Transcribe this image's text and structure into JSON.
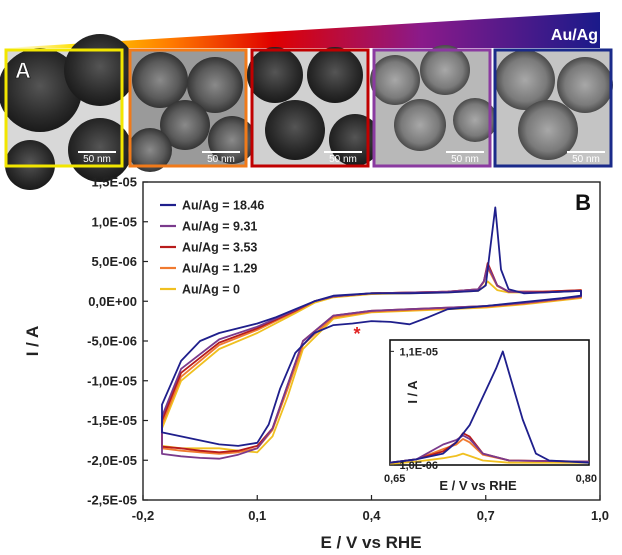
{
  "header": {
    "gradient_label": "Au/Ag",
    "panel_a_letter": "A",
    "panel_b_letter": "B",
    "gradient_colors": [
      "#ffffff",
      "#ffe000",
      "#ff7a00",
      "#e00000",
      "#8a1a8a",
      "#1a1a8a"
    ]
  },
  "tem_images": [
    {
      "scale": "50 nm",
      "border_color": "#f2e600"
    },
    {
      "scale": "50 nm",
      "border_color": "#f07a1a"
    },
    {
      "scale": "50 nm",
      "border_color": "#c00000"
    },
    {
      "scale": "50 nm",
      "border_color": "#8a3aa0"
    },
    {
      "scale": "50 nm",
      "border_color": "#1a2a8a"
    }
  ],
  "chart_data": [
    {
      "type": "line",
      "xlabel": "E / V vs RHE",
      "ylabel": "I / A",
      "xlim": [
        -0.2,
        1.0
      ],
      "ylim": [
        -2.5e-05,
        1.5e-05
      ],
      "x_ticks": [
        "-0,2",
        "0,1",
        "0,4",
        "0,7",
        "1,0"
      ],
      "y_ticks": [
        "1,5E-05",
        "1,0E-05",
        "5,0E-06",
        "0,0E+00",
        "-5,0E-06",
        "-1,0E-05",
        "-1,5E-05",
        "-2,0E-05",
        "-2,5E-05"
      ],
      "legend_position": "top-left",
      "annotation": "*",
      "series": [
        {
          "name": "Au/Ag = 18.46",
          "color": "#1f1f8c",
          "points": [
            [
              -0.15,
              -1.6e-05
            ],
            [
              -0.15,
              -1.65e-05
            ],
            [
              -0.1,
              -1.7e-05
            ],
            [
              -0.05,
              -1.75e-05
            ],
            [
              0.0,
              -1.8e-05
            ],
            [
              0.05,
              -1.82e-05
            ],
            [
              0.1,
              -1.78e-05
            ],
            [
              0.13,
              -1.55e-05
            ],
            [
              0.16,
              -1.1e-05
            ],
            [
              0.2,
              -6.5e-06
            ],
            [
              0.25,
              -4e-06
            ],
            [
              0.3,
              -3e-06
            ],
            [
              0.35,
              -2.8e-06
            ],
            [
              0.4,
              -2.5e-06
            ],
            [
              0.45,
              -2.6e-06
            ],
            [
              0.5,
              -2.9e-06
            ],
            [
              0.55,
              -2e-06
            ],
            [
              0.6,
              -1e-06
            ],
            [
              0.7,
              -6e-07
            ],
            [
              0.8,
              -1e-07
            ],
            [
              0.9,
              4e-07
            ],
            [
              0.95,
              7e-07
            ],
            [
              0.95,
              1.3e-06
            ],
            [
              0.9,
              1.2e-06
            ],
            [
              0.85,
              1.1e-06
            ],
            [
              0.8,
              1e-06
            ],
            [
              0.76,
              1.5e-06
            ],
            [
              0.74,
              4e-06
            ],
            [
              0.725,
              1.18e-05
            ],
            [
              0.71,
              6e-06
            ],
            [
              0.7,
              2e-06
            ],
            [
              0.68,
              1.3e-06
            ],
            [
              0.6,
              1.1e-06
            ],
            [
              0.5,
              1e-06
            ],
            [
              0.4,
              1e-06
            ],
            [
              0.3,
              7e-07
            ],
            [
              0.25,
              0.0
            ],
            [
              0.2,
              -1e-06
            ],
            [
              0.15,
              -2e-06
            ],
            [
              0.1,
              -2.8e-06
            ],
            [
              0.0,
              -4e-06
            ],
            [
              -0.05,
              -5e-06
            ],
            [
              -0.1,
              -7.5e-06
            ],
            [
              -0.15,
              -1.3e-05
            ],
            [
              -0.15,
              -1.6e-05
            ]
          ]
        },
        {
          "name": "Au/Ag = 9.31",
          "color": "#7a3a8c",
          "points": [
            [
              -0.15,
              -1.88e-05
            ],
            [
              -0.15,
              -1.92e-05
            ],
            [
              -0.1,
              -1.95e-05
            ],
            [
              -0.05,
              -1.97e-05
            ],
            [
              0.0,
              -1.98e-05
            ],
            [
              0.05,
              -1.93e-05
            ],
            [
              0.1,
              -1.85e-05
            ],
            [
              0.14,
              -1.6e-05
            ],
            [
              0.18,
              -1.05e-05
            ],
            [
              0.22,
              -5e-06
            ],
            [
              0.3,
              -1.8e-06
            ],
            [
              0.4,
              -1.2e-06
            ],
            [
              0.5,
              -1e-06
            ],
            [
              0.6,
              -8e-07
            ],
            [
              0.7,
              -6e-07
            ],
            [
              0.8,
              -2e-07
            ],
            [
              0.95,
              6e-07
            ],
            [
              0.95,
              1.3e-06
            ],
            [
              0.85,
              1.1e-06
            ],
            [
              0.76,
              1.2e-06
            ],
            [
              0.73,
              2e-06
            ],
            [
              0.705,
              4.5e-06
            ],
            [
              0.695,
              2.5e-06
            ],
            [
              0.68,
              1.5e-06
            ],
            [
              0.6,
              1.2e-06
            ],
            [
              0.5,
              1.1e-06
            ],
            [
              0.4,
              1e-06
            ],
            [
              0.3,
              6e-07
            ],
            [
              0.25,
              0.0
            ],
            [
              0.2,
              -1.1e-06
            ],
            [
              0.1,
              -3.2e-06
            ],
            [
              0.0,
              -4.8e-06
            ],
            [
              -0.1,
              -8.5e-06
            ],
            [
              -0.15,
              -1.45e-05
            ],
            [
              -0.15,
              -1.88e-05
            ]
          ]
        },
        {
          "name": "Au/Ag = 3.53",
          "color": "#b81c1c",
          "points": [
            [
              -0.15,
              -1.8e-05
            ],
            [
              -0.15,
              -1.83e-05
            ],
            [
              -0.1,
              -1.85e-05
            ],
            [
              -0.05,
              -1.88e-05
            ],
            [
              0.0,
              -1.9e-05
            ],
            [
              0.05,
              -1.88e-05
            ],
            [
              0.1,
              -1.82e-05
            ],
            [
              0.14,
              -1.6e-05
            ],
            [
              0.18,
              -1.05e-05
            ],
            [
              0.22,
              -5e-06
            ],
            [
              0.3,
              -1.8e-06
            ],
            [
              0.4,
              -1.2e-06
            ],
            [
              0.5,
              -1e-06
            ],
            [
              0.6,
              -8e-07
            ],
            [
              0.7,
              -6e-07
            ],
            [
              0.8,
              -2e-07
            ],
            [
              0.95,
              6e-07
            ],
            [
              0.95,
              1.4e-06
            ],
            [
              0.85,
              1.2e-06
            ],
            [
              0.76,
              1.2e-06
            ],
            [
              0.73,
              2e-06
            ],
            [
              0.705,
              4.8e-06
            ],
            [
              0.695,
              2.5e-06
            ],
            [
              0.68,
              1.5e-06
            ],
            [
              0.6,
              1.2e-06
            ],
            [
              0.5,
              1.1e-06
            ],
            [
              0.4,
              1e-06
            ],
            [
              0.3,
              6e-07
            ],
            [
              0.25,
              0.0
            ],
            [
              0.2,
              -1.2e-06
            ],
            [
              0.1,
              -3.4e-06
            ],
            [
              0.0,
              -5.2e-06
            ],
            [
              -0.1,
              -9e-06
            ],
            [
              -0.15,
              -1.5e-05
            ],
            [
              -0.15,
              -1.8e-05
            ]
          ]
        },
        {
          "name": "Au/Ag = 1.29",
          "color": "#f07a30",
          "points": [
            [
              -0.15,
              -1.8e-05
            ],
            [
              -0.15,
              -1.85e-05
            ],
            [
              -0.1,
              -1.88e-05
            ],
            [
              -0.05,
              -1.9e-05
            ],
            [
              0.0,
              -1.92e-05
            ],
            [
              0.05,
              -1.9e-05
            ],
            [
              0.1,
              -1.85e-05
            ],
            [
              0.14,
              -1.62e-05
            ],
            [
              0.18,
              -1.1e-05
            ],
            [
              0.22,
              -5.5e-06
            ],
            [
              0.3,
              -2e-06
            ],
            [
              0.4,
              -1.3e-06
            ],
            [
              0.5,
              -1.1e-06
            ],
            [
              0.6,
              -9e-07
            ],
            [
              0.7,
              -7e-07
            ],
            [
              0.8,
              -3e-07
            ],
            [
              0.95,
              5e-07
            ],
            [
              0.95,
              1.4e-06
            ],
            [
              0.85,
              1.2e-06
            ],
            [
              0.76,
              1.2e-06
            ],
            [
              0.73,
              1.9e-06
            ],
            [
              0.705,
              4.2e-06
            ],
            [
              0.695,
              2.4e-06
            ],
            [
              0.68,
              1.5e-06
            ],
            [
              0.6,
              1.2e-06
            ],
            [
              0.5,
              1.1e-06
            ],
            [
              0.4,
              1e-06
            ],
            [
              0.3,
              6e-07
            ],
            [
              0.25,
              0.0
            ],
            [
              0.2,
              -1.3e-06
            ],
            [
              0.1,
              -3.6e-06
            ],
            [
              0.0,
              -5.5e-06
            ],
            [
              -0.1,
              -9.5e-06
            ],
            [
              -0.15,
              -1.55e-05
            ],
            [
              -0.15,
              -1.8e-05
            ]
          ]
        },
        {
          "name": "Au/Ag = 0",
          "color": "#f0c020",
          "points": [
            [
              -0.15,
              -1.78e-05
            ],
            [
              -0.15,
              -1.82e-05
            ],
            [
              -0.1,
              -1.85e-05
            ],
            [
              -0.05,
              -1.85e-05
            ],
            [
              0.0,
              -1.85e-05
            ],
            [
              0.05,
              -1.88e-05
            ],
            [
              0.1,
              -1.9e-05
            ],
            [
              0.14,
              -1.7e-05
            ],
            [
              0.18,
              -1.2e-05
            ],
            [
              0.22,
              -6e-06
            ],
            [
              0.3,
              -2.2e-06
            ],
            [
              0.4,
              -1.4e-06
            ],
            [
              0.5,
              -1.2e-06
            ],
            [
              0.6,
              -1e-06
            ],
            [
              0.7,
              -8e-07
            ],
            [
              0.8,
              -4e-07
            ],
            [
              0.95,
              4e-07
            ],
            [
              0.95,
              1.3e-06
            ],
            [
              0.85,
              1.1e-06
            ],
            [
              0.76,
              1.1e-06
            ],
            [
              0.73,
              1.4e-06
            ],
            [
              0.705,
              2.5e-06
            ],
            [
              0.695,
              1.8e-06
            ],
            [
              0.68,
              1.3e-06
            ],
            [
              0.6,
              1.1e-06
            ],
            [
              0.5,
              1e-06
            ],
            [
              0.4,
              9e-07
            ],
            [
              0.3,
              5e-07
            ],
            [
              0.25,
              -2e-07
            ],
            [
              0.2,
              -1.5e-06
            ],
            [
              0.1,
              -4e-06
            ],
            [
              0.0,
              -6e-06
            ],
            [
              -0.1,
              -1e-05
            ],
            [
              -0.15,
              -1.6e-05
            ],
            [
              -0.15,
              -1.78e-05
            ]
          ]
        }
      ]
    },
    {
      "type": "line",
      "xlabel": "E / V vs RHE",
      "ylabel": "I / A",
      "xlim": [
        0.65,
        0.8
      ],
      "ylim": [
        1e-06,
        1.2e-05
      ],
      "x_ticks": [
        "0,65",
        "0,80"
      ],
      "y_ticks": [
        "1,1E-05",
        "1,0E-06"
      ],
      "series": [
        {
          "color": "#1f1f8c",
          "points": [
            [
              0.65,
              1.2e-06
            ],
            [
              0.67,
              1.5e-06
            ],
            [
              0.69,
              2e-06
            ],
            [
              0.7,
              3e-06
            ],
            [
              0.71,
              4.5e-06
            ],
            [
              0.72,
              7e-06
            ],
            [
              0.73,
              9.5e-06
            ],
            [
              0.735,
              1.1e-05
            ],
            [
              0.74,
              9e-06
            ],
            [
              0.75,
              5e-06
            ],
            [
              0.76,
              2e-06
            ],
            [
              0.77,
              1.4e-06
            ],
            [
              0.8,
              1.2e-06
            ]
          ]
        },
        {
          "color": "#7a3a8c",
          "points": [
            [
              0.65,
              1.2e-06
            ],
            [
              0.67,
              1.5e-06
            ],
            [
              0.69,
              2.8e-06
            ],
            [
              0.7,
              3.2e-06
            ],
            [
              0.705,
              3.6e-06
            ],
            [
              0.71,
              3.3e-06
            ],
            [
              0.72,
              2e-06
            ],
            [
              0.74,
              1.4e-06
            ],
            [
              0.8,
              1.3e-06
            ]
          ]
        },
        {
          "color": "#b81c1c",
          "points": [
            [
              0.65,
              1.2e-06
            ],
            [
              0.67,
              1.5e-06
            ],
            [
              0.69,
              2.2e-06
            ],
            [
              0.7,
              3e-06
            ],
            [
              0.705,
              3.8e-06
            ],
            [
              0.71,
              3.5e-06
            ],
            [
              0.72,
              2e-06
            ],
            [
              0.74,
              1.4e-06
            ],
            [
              0.8,
              1.3e-06
            ]
          ]
        },
        {
          "color": "#f07a30",
          "points": [
            [
              0.65,
              1.2e-06
            ],
            [
              0.67,
              1.5e-06
            ],
            [
              0.69,
              2.4e-06
            ],
            [
              0.7,
              2.8e-06
            ],
            [
              0.705,
              3.3e-06
            ],
            [
              0.71,
              3e-06
            ],
            [
              0.72,
              1.9e-06
            ],
            [
              0.74,
              1.4e-06
            ],
            [
              0.8,
              1.3e-06
            ]
          ]
        },
        {
          "color": "#f0c020",
          "points": [
            [
              0.65,
              1.1e-06
            ],
            [
              0.67,
              1.3e-06
            ],
            [
              0.69,
              1.6e-06
            ],
            [
              0.7,
              1.8e-06
            ],
            [
              0.705,
              2e-06
            ],
            [
              0.71,
              1.8e-06
            ],
            [
              0.72,
              1.4e-06
            ],
            [
              0.74,
              1.2e-06
            ],
            [
              0.8,
              1.2e-06
            ]
          ]
        }
      ]
    }
  ]
}
